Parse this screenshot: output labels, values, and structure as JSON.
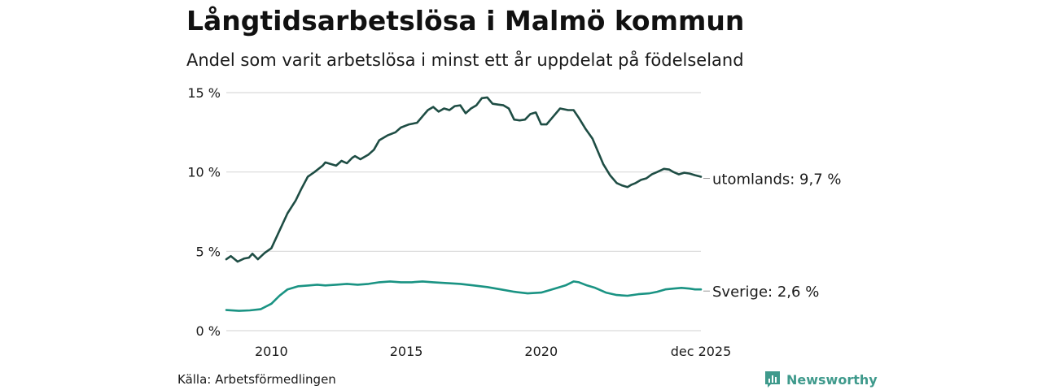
{
  "title": "Långtidsarbetslösa i Malmö kommun",
  "subtitle": "Andel som varit arbetslösa i minst ett år uppdelat på födelseland",
  "source": "Källa: Arbetsförmedlingen",
  "brand": {
    "name": "Newsworthy",
    "icon": "newsworthy-bar-chart-icon",
    "color": "#3f9a8c"
  },
  "chart_data": {
    "type": "line",
    "title": "Långtidsarbetslösa i Malmö kommun",
    "xlabel": "",
    "ylabel": "",
    "xlim": [
      2008.33,
      2025.92
    ],
    "ylim": [
      0,
      15
    ],
    "y_ticks": [
      0,
      5,
      10,
      15
    ],
    "y_tick_labels": [
      "0 %",
      "5 %",
      "10 %",
      "15 %"
    ],
    "x_ticks": [
      2010,
      2015,
      2020,
      2025.92
    ],
    "x_tick_labels": [
      "2010",
      "2015",
      "2020",
      "dec 2025"
    ],
    "grid": true,
    "legend": "inline end labels",
    "series": [
      {
        "name": "utomlands",
        "end_label": "utomlands: 9,7 %",
        "color": "#1e4d44",
        "x": [
          2008.33,
          2008.5,
          2008.75,
          2009.0,
          2009.17,
          2009.3,
          2009.5,
          2009.75,
          2010.0,
          2010.3,
          2010.6,
          2010.9,
          2011.1,
          2011.35,
          2011.6,
          2011.9,
          2012.0,
          2012.2,
          2012.4,
          2012.6,
          2012.8,
          2013.0,
          2013.1,
          2013.3,
          2013.6,
          2013.8,
          2014.0,
          2014.3,
          2014.6,
          2014.8,
          2015.1,
          2015.4,
          2015.65,
          2015.8,
          2016.0,
          2016.2,
          2016.4,
          2016.6,
          2016.8,
          2017.0,
          2017.2,
          2017.4,
          2017.6,
          2017.8,
          2018.0,
          2018.2,
          2018.4,
          2018.6,
          2018.8,
          2019.0,
          2019.2,
          2019.4,
          2019.6,
          2019.8,
          2020.0,
          2020.2,
          2020.4,
          2020.7,
          2021.0,
          2021.2,
          2021.4,
          2021.65,
          2021.9,
          2022.1,
          2022.3,
          2022.55,
          2022.8,
          2023.0,
          2023.2,
          2023.35,
          2023.5,
          2023.7,
          2023.9,
          2024.1,
          2024.3,
          2024.55,
          2024.75,
          2024.9,
          2025.1,
          2025.3,
          2025.5,
          2025.7,
          2025.92
        ],
        "values": [
          4.5,
          4.7,
          4.35,
          4.55,
          4.6,
          4.85,
          4.5,
          4.9,
          5.2,
          6.3,
          7.4,
          8.2,
          8.9,
          9.7,
          10.0,
          10.4,
          10.6,
          10.5,
          10.4,
          10.7,
          10.55,
          10.9,
          11.0,
          10.8,
          11.1,
          11.4,
          12.0,
          12.3,
          12.5,
          12.8,
          13.0,
          13.1,
          13.6,
          13.9,
          14.1,
          13.8,
          14.0,
          13.9,
          14.15,
          14.2,
          13.7,
          14.0,
          14.2,
          14.65,
          14.7,
          14.3,
          14.25,
          14.2,
          14.0,
          13.3,
          13.25,
          13.3,
          13.65,
          13.75,
          13.0,
          13.0,
          13.4,
          14.0,
          13.9,
          13.9,
          13.4,
          12.7,
          12.1,
          11.3,
          10.5,
          9.8,
          9.3,
          9.15,
          9.05,
          9.2,
          9.3,
          9.5,
          9.6,
          9.85,
          10.0,
          10.2,
          10.15,
          10.0,
          9.85,
          9.95,
          9.9,
          9.8,
          9.7
        ]
      },
      {
        "name": "Sverige",
        "end_label": "Sverige: 2,6 %",
        "color": "#1a9383",
        "x": [
          2008.33,
          2008.8,
          2009.2,
          2009.6,
          2010.0,
          2010.3,
          2010.6,
          2011.0,
          2011.4,
          2011.7,
          2012.0,
          2012.4,
          2012.8,
          2013.2,
          2013.6,
          2014.0,
          2014.4,
          2014.8,
          2015.2,
          2015.6,
          2016.0,
          2016.5,
          2017.0,
          2017.5,
          2018.0,
          2018.5,
          2019.0,
          2019.5,
          2020.0,
          2020.3,
          2020.6,
          2020.9,
          2021.2,
          2021.4,
          2021.7,
          2022.0,
          2022.4,
          2022.8,
          2023.2,
          2023.6,
          2024.0,
          2024.3,
          2024.6,
          2024.9,
          2025.2,
          2025.5,
          2025.7,
          2025.92
        ],
        "values": [
          1.3,
          1.25,
          1.28,
          1.35,
          1.7,
          2.2,
          2.6,
          2.8,
          2.85,
          2.9,
          2.85,
          2.9,
          2.95,
          2.9,
          2.95,
          3.05,
          3.1,
          3.05,
          3.05,
          3.1,
          3.05,
          3.0,
          2.95,
          2.85,
          2.75,
          2.6,
          2.45,
          2.35,
          2.4,
          2.55,
          2.7,
          2.85,
          3.1,
          3.05,
          2.85,
          2.7,
          2.4,
          2.25,
          2.2,
          2.3,
          2.35,
          2.45,
          2.6,
          2.65,
          2.7,
          2.65,
          2.6,
          2.6
        ]
      }
    ]
  }
}
